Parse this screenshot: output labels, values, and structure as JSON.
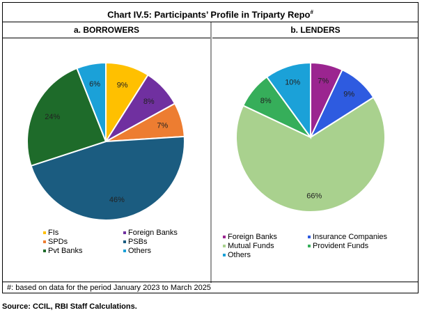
{
  "title": "Chart IV.5: Participants’ Profile in Triparty Repo",
  "title_sup": "#",
  "footnote": "#:  based on data for the period January 2023 to March 2025",
  "source": "Source: CCIL, RBI Staff Calculations.",
  "chart_data": [
    {
      "type": "pie",
      "title": "a. BORROWERS",
      "legend": "bottom",
      "categories": [
        "FIs",
        "Foreign Banks",
        "SPDs",
        "PSBs",
        "Pvt Banks",
        "Others"
      ],
      "values": [
        9,
        8,
        7,
        46,
        24,
        6
      ],
      "labels": [
        "9%",
        "8%",
        "7%",
        "46%",
        "24%",
        "6%"
      ],
      "colors": [
        "#FFC000",
        "#7030A0",
        "#ED7D31",
        "#1B5C80",
        "#1E6B2A",
        "#1BA1D8"
      ]
    },
    {
      "type": "pie",
      "title": "b. LENDERS",
      "legend": "bottom",
      "categories": [
        "Foreign Banks",
        "Insurance Companies",
        "Mutual Funds",
        "Provident Funds",
        "Others"
      ],
      "values": [
        7,
        9,
        66,
        8,
        10
      ],
      "labels": [
        "7%",
        "9%",
        "66%",
        "8%",
        "10%"
      ],
      "colors": [
        "#9B2590",
        "#2E5BE0",
        "#A9D18E",
        "#36AE5A",
        "#1BA1D8"
      ]
    }
  ]
}
